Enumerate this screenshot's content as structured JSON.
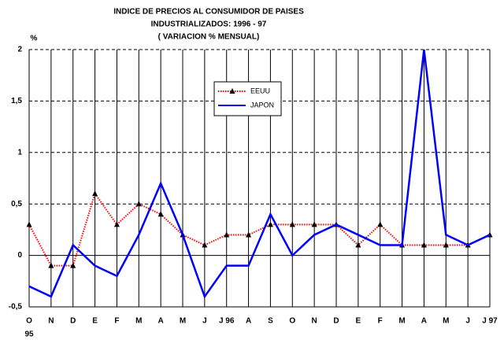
{
  "chart_data": {
    "type": "line",
    "title": [
      "INDICE DE PRECIOS AL CONSUMIDOR DE PAISES",
      "INDUSTRIALIZADOS: 1996 - 97",
      "( VARIACION % MENSUAL)"
    ],
    "y_label": "%",
    "categories": [
      "O",
      "N",
      "D",
      "E",
      "F",
      "M",
      "A",
      "M",
      "J",
      "J 96",
      "A",
      "S",
      "O",
      "N",
      "D",
      "E",
      "F",
      "M",
      "A",
      "M",
      "J",
      "J 97"
    ],
    "start_year_label": "95",
    "series": [
      {
        "name": "EEUU",
        "color": "#ff0000",
        "marker_color": "#000000",
        "values": [
          0.3,
          -0.1,
          -0.1,
          0.6,
          0.3,
          0.5,
          0.4,
          0.2,
          0.1,
          0.2,
          0.2,
          0.3,
          0.3,
          0.3,
          0.3,
          0.1,
          0.3,
          0.1,
          0.1,
          0.1,
          0.1,
          0.2
        ]
      },
      {
        "name": "JAPON",
        "color": "#0000ff",
        "values": [
          -0.3,
          -0.4,
          0.1,
          -0.1,
          -0.2,
          0.2,
          0.7,
          0.2,
          -0.4,
          -0.1,
          -0.1,
          0.4,
          0,
          0.2,
          0.3,
          0.2,
          0.1,
          0.1,
          2,
          0.2,
          0.1,
          0.2
        ]
      }
    ],
    "ylim": [
      -0.5,
      2
    ],
    "yticks": [
      {
        "value": -0.5,
        "label": "-0,5"
      },
      0,
      {
        "value": 0.5,
        "label": "0,5"
      },
      1,
      {
        "value": 1.5,
        "label": "1,5"
      },
      2
    ],
    "grid": true
  }
}
